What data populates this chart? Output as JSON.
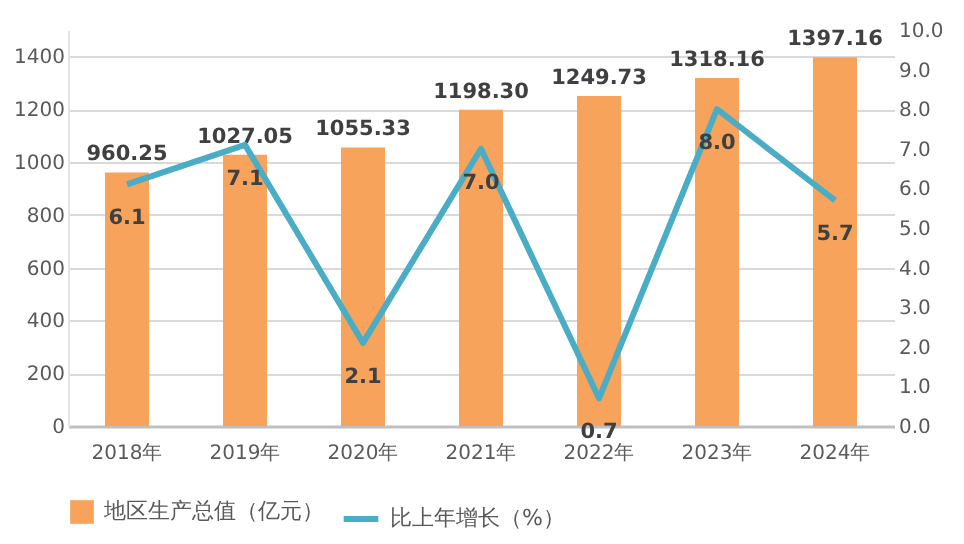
{
  "chart_data": {
    "type": "bar",
    "categories": [
      "2018年",
      "2019年",
      "2020年",
      "2021年",
      "2022年",
      "2023年",
      "2024年"
    ],
    "series": [
      {
        "name": "地区生产总值（亿元）",
        "color": "#f7a35c",
        "values": [
          960.25,
          1027.05,
          1055.33,
          1198.3,
          1249.73,
          1318.16,
          1397.16
        ],
        "value_labels": [
          "960.25",
          "1027.05",
          "1055.33",
          "1198.30",
          "1249.73",
          "1318.16",
          "1397.16"
        ]
      },
      {
        "name": "比上年增长（%）",
        "type": "line",
        "axis": "y2",
        "color": "#4bacc6",
        "values": [
          6.1,
          7.1,
          2.1,
          7.0,
          0.7,
          8.0,
          5.7
        ],
        "value_labels": [
          "6.1",
          "7.1",
          "2.1",
          "7.0",
          "0.7",
          "8.0",
          "5.7"
        ]
      }
    ],
    "ylim": [
      0,
      1500
    ],
    "yticks": [
      0,
      200,
      400,
      600,
      800,
      1000,
      1200,
      1400
    ],
    "y2lim": [
      0,
      10
    ],
    "y2ticks": [
      {
        "value": 0,
        "label": "0.0"
      },
      {
        "value": 1,
        "label": "1.0"
      },
      {
        "value": 2,
        "label": "2.0"
      },
      {
        "value": 3,
        "label": "3.0"
      },
      {
        "value": 4,
        "label": "4.0"
      },
      {
        "value": 5,
        "label": "5.0"
      },
      {
        "value": 6,
        "label": "6.0"
      },
      {
        "value": 7,
        "label": "7.0"
      },
      {
        "value": 8,
        "label": "8.0"
      },
      {
        "value": 9,
        "label": "9.0"
      },
      {
        "value": 10,
        "label": "10.0"
      }
    ],
    "grid": "y",
    "legend": "bottom",
    "marker": "none",
    "line_style": "solid"
  }
}
